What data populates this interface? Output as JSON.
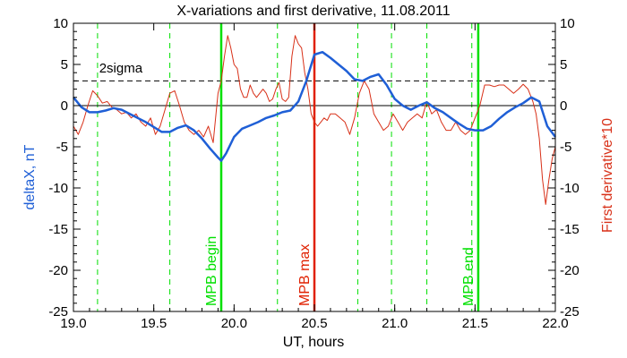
{
  "chart_data": {
    "type": "line",
    "title": "X-variations and first derivative, 11.08.2011",
    "xlabel": "UT, hours",
    "ylabel_left": "deltaX, nT",
    "ylabel_right": "First derivative*10",
    "xlim": [
      19.0,
      22.0
    ],
    "ylim": [
      -25,
      10
    ],
    "xticks": [
      "19.0",
      "19.5",
      "20.0",
      "20.5",
      "21.0",
      "21.5",
      "22.0"
    ],
    "xtick_values": [
      19.0,
      19.5,
      20.0,
      20.5,
      21.0,
      21.5,
      22.0
    ],
    "yticks": [
      "10",
      "5",
      "0",
      "-5",
      "-10",
      "-15",
      "-20",
      "-25"
    ],
    "ytick_values": [
      10,
      5,
      0,
      -5,
      -10,
      -15,
      -20,
      -25
    ],
    "grid": false,
    "threshold": {
      "label": "2sigma",
      "value": 3,
      "label_x": 19.16,
      "label_y": 4.0
    },
    "dashed_vlines_x": [
      19.15,
      19.6,
      20.27,
      20.77,
      20.98,
      21.2,
      21.48
    ],
    "markers": [
      {
        "label": "MPB begin",
        "x": 19.92,
        "color": "#00e000"
      },
      {
        "label": "MPB max",
        "x": 20.5,
        "color": "#e02000"
      },
      {
        "label": "MPB end",
        "x": 21.52,
        "color": "#00e000"
      }
    ],
    "colors": {
      "series_deltaX": "#1f5fd6",
      "series_derivative": "#d83018",
      "green": "#00e000",
      "red": "#e02000",
      "axis": "#000000"
    },
    "series": [
      {
        "name": "deltaX, nT",
        "color": "#1f5fd6",
        "x": [
          19.0,
          19.05,
          19.1,
          19.15,
          19.2,
          19.25,
          19.3,
          19.35,
          19.4,
          19.45,
          19.5,
          19.55,
          19.6,
          19.65,
          19.7,
          19.75,
          19.8,
          19.85,
          19.9,
          19.92,
          19.95,
          20.0,
          20.05,
          20.1,
          20.15,
          20.2,
          20.25,
          20.3,
          20.35,
          20.4,
          20.45,
          20.5,
          20.55,
          20.6,
          20.65,
          20.7,
          20.75,
          20.8,
          20.85,
          20.9,
          20.95,
          21.0,
          21.05,
          21.1,
          21.15,
          21.2,
          21.25,
          21.3,
          21.35,
          21.4,
          21.45,
          21.5,
          21.55,
          21.6,
          21.65,
          21.7,
          21.75,
          21.8,
          21.85,
          21.9,
          21.95,
          22.0
        ],
        "values": [
          1.0,
          -0.2,
          -0.8,
          -0.8,
          -0.6,
          -0.3,
          -0.5,
          -1.0,
          -1.5,
          -2.0,
          -2.6,
          -3.2,
          -3.2,
          -2.7,
          -2.4,
          -3.0,
          -4.0,
          -5.2,
          -6.3,
          -6.7,
          -5.8,
          -3.8,
          -2.8,
          -2.4,
          -2.0,
          -1.5,
          -1.2,
          -0.8,
          -0.6,
          0.5,
          3.0,
          6.2,
          6.5,
          5.8,
          5.0,
          4.2,
          3.2,
          3.0,
          3.5,
          3.8,
          2.5,
          0.8,
          0.0,
          -0.5,
          0.0,
          0.4,
          -0.3,
          -0.8,
          -1.5,
          -2.2,
          -2.8,
          -3.0,
          -3.0,
          -2.5,
          -1.6,
          -0.8,
          -0.2,
          0.3,
          1.0,
          0.5,
          -2.5,
          -3.8
        ]
      },
      {
        "name": "First derivative*10",
        "color": "#d83018",
        "x": [
          19.0,
          19.03,
          19.06,
          19.09,
          19.12,
          19.15,
          19.18,
          19.21,
          19.24,
          19.27,
          19.3,
          19.33,
          19.36,
          19.39,
          19.42,
          19.45,
          19.48,
          19.51,
          19.54,
          19.57,
          19.6,
          19.63,
          19.66,
          19.69,
          19.72,
          19.75,
          19.78,
          19.81,
          19.84,
          19.87,
          19.9,
          19.92,
          19.94,
          19.96,
          19.98,
          20.0,
          20.02,
          20.04,
          20.06,
          20.08,
          20.1,
          20.12,
          20.14,
          20.16,
          20.18,
          20.2,
          20.22,
          20.24,
          20.26,
          20.28,
          20.3,
          20.32,
          20.34,
          20.36,
          20.38,
          20.4,
          20.42,
          20.44,
          20.46,
          20.48,
          20.5,
          20.52,
          20.54,
          20.56,
          20.58,
          20.6,
          20.63,
          20.66,
          20.69,
          20.72,
          20.75,
          20.78,
          20.81,
          20.84,
          20.87,
          20.9,
          20.93,
          20.96,
          20.99,
          21.02,
          21.05,
          21.08,
          21.11,
          21.14,
          21.17,
          21.2,
          21.23,
          21.26,
          21.29,
          21.32,
          21.35,
          21.38,
          21.41,
          21.44,
          21.47,
          21.5,
          21.53,
          21.56,
          21.59,
          21.62,
          21.65,
          21.68,
          21.71,
          21.74,
          21.77,
          21.8,
          21.83,
          21.86,
          21.88,
          21.9,
          21.92,
          21.94,
          21.96,
          21.98,
          22.0
        ],
        "values": [
          -2.5,
          -3.5,
          -2.0,
          0.0,
          1.8,
          1.2,
          0.3,
          0.5,
          -0.2,
          -0.5,
          -1.0,
          -0.8,
          -1.5,
          -1.0,
          -2.0,
          -2.5,
          -1.5,
          -3.5,
          -2.5,
          -0.5,
          1.5,
          1.8,
          0.0,
          -2.0,
          -3.0,
          -3.5,
          -3.0,
          -3.8,
          -2.5,
          -4.5,
          1.5,
          3.0,
          6.0,
          8.5,
          7.0,
          5.0,
          4.5,
          2.0,
          1.0,
          1.0,
          2.5,
          1.5,
          1.0,
          1.5,
          2.0,
          1.5,
          0.5,
          0.8,
          2.0,
          2.8,
          0.8,
          0.5,
          1.0,
          6.0,
          8.5,
          7.5,
          7.0,
          4.0,
          2.0,
          -1.0,
          -2.0,
          -2.5,
          -2.0,
          -1.5,
          -1.8,
          -1.0,
          -1.0,
          -1.5,
          -2.0,
          -3.5,
          -1.5,
          1.5,
          3.0,
          2.0,
          -1.0,
          -2.0,
          -3.0,
          -2.5,
          -1.0,
          -2.0,
          -3.0,
          -2.0,
          -1.5,
          -1.0,
          -1.5,
          0.5,
          -1.0,
          -0.5,
          -2.0,
          -3.0,
          -3.0,
          -2.0,
          -3.0,
          -3.5,
          -3.0,
          -1.5,
          0.0,
          2.5,
          2.5,
          2.3,
          2.5,
          2.5,
          2.0,
          1.5,
          2.0,
          2.6,
          2.0,
          0.5,
          -1.0,
          -4.0,
          -9.0,
          -12.0,
          -9.0,
          -6.5,
          -5.0
        ]
      }
    ]
  }
}
